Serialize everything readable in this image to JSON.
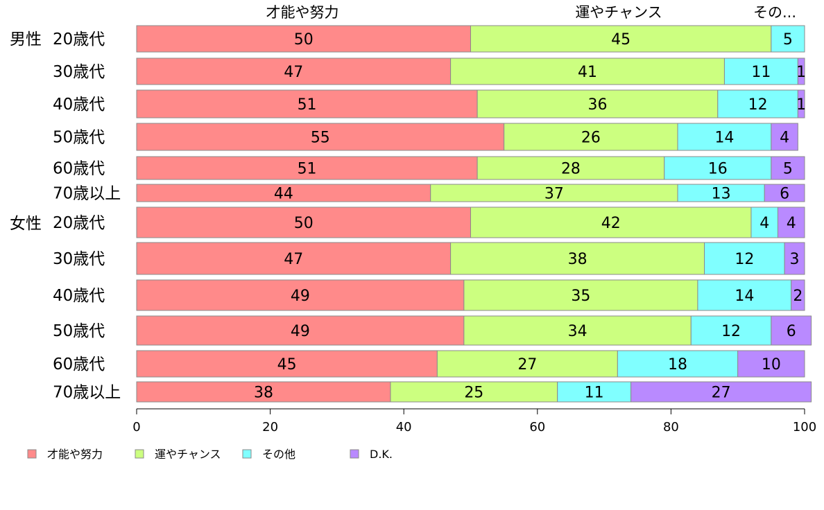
{
  "chart_data": {
    "type": "bar",
    "orientation": "horizontal",
    "stacked": true,
    "top_labels": [
      "才能や努力",
      "運やチャンス",
      "その..."
    ],
    "group_labels": [
      "男性",
      "女性"
    ],
    "categories": [
      "20歳代",
      "30歳代",
      "40歳代",
      "50歳代",
      "60歳代",
      "70歳以上",
      "20歳代",
      "30歳代",
      "40歳代",
      "50歳代",
      "60歳代",
      "70歳以上"
    ],
    "series": [
      {
        "name": "才能や努力",
        "color": "#ff8a8a",
        "values": [
          50,
          47,
          51,
          55,
          51,
          44,
          50,
          47,
          49,
          49,
          45,
          38
        ]
      },
      {
        "name": "運やチャンス",
        "color": "#ccff80",
        "values": [
          45,
          41,
          36,
          26,
          28,
          37,
          42,
          38,
          35,
          34,
          27,
          25
        ]
      },
      {
        "name": "その他",
        "color": "#80ffff",
        "values": [
          5,
          11,
          12,
          14,
          16,
          13,
          4,
          12,
          14,
          12,
          18,
          11
        ]
      },
      {
        "name": "D.K.",
        "color": "#b98aff",
        "values": [
          0,
          1,
          1,
          4,
          5,
          6,
          4,
          3,
          2,
          6,
          10,
          27
        ]
      }
    ],
    "xlim": [
      0,
      100
    ],
    "xticks": [
      "0",
      "20",
      "40",
      "60",
      "80",
      "100"
    ],
    "legend_position": "bottom-left",
    "grid": false
  }
}
